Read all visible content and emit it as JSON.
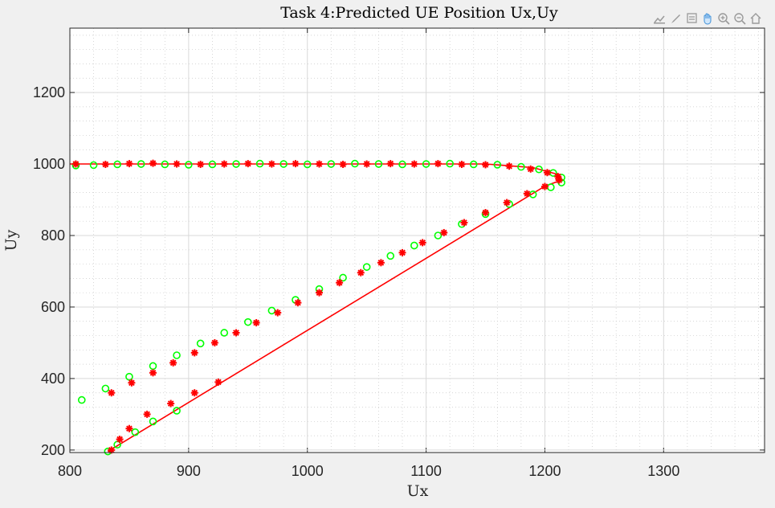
{
  "chart_data": {
    "type": "scatter",
    "title": "Task 4:Predicted UE Position Ux,Uy",
    "xlabel": "Ux",
    "ylabel": "Uy",
    "xlim": [
      800,
      1385
    ],
    "ylim": [
      193,
      1380
    ],
    "xticks": [
      800,
      900,
      1000,
      1100,
      1200,
      1300
    ],
    "yticks": [
      200,
      400,
      600,
      800,
      1000,
      1200
    ],
    "grid": true,
    "minor_grid": true,
    "series": [
      {
        "marker": "circle",
        "color": "#00ff00",
        "points": [
          [
            805,
            996
          ],
          [
            820,
            997
          ],
          [
            840,
            999
          ],
          [
            860,
            1000
          ],
          [
            880,
            999
          ],
          [
            900,
            998
          ],
          [
            920,
            999
          ],
          [
            940,
            1000
          ],
          [
            960,
            1001
          ],
          [
            980,
            1000
          ],
          [
            1000,
            999
          ],
          [
            1020,
            1000
          ],
          [
            1040,
            1001
          ],
          [
            1060,
            1000
          ],
          [
            1080,
            999
          ],
          [
            1100,
            1000
          ],
          [
            1120,
            1001
          ],
          [
            1140,
            999
          ],
          [
            1160,
            998
          ],
          [
            1180,
            992
          ],
          [
            1195,
            985
          ],
          [
            1207,
            975
          ],
          [
            1214,
            962
          ],
          [
            1214,
            948
          ],
          [
            1205,
            935
          ],
          [
            1190,
            915
          ],
          [
            1170,
            888
          ],
          [
            1150,
            860
          ],
          [
            1130,
            832
          ],
          [
            1110,
            800
          ],
          [
            1090,
            772
          ],
          [
            1070,
            743
          ],
          [
            1050,
            712
          ],
          [
            1030,
            682
          ],
          [
            1010,
            650
          ],
          [
            990,
            620
          ],
          [
            970,
            590
          ],
          [
            950,
            558
          ],
          [
            930,
            528
          ],
          [
            910,
            498
          ],
          [
            890,
            465
          ],
          [
            870,
            435
          ],
          [
            850,
            405
          ],
          [
            830,
            372
          ],
          [
            810,
            340
          ],
          [
            890,
            310
          ],
          [
            870,
            280
          ],
          [
            855,
            250
          ],
          [
            840,
            215
          ],
          [
            832,
            196
          ]
        ]
      },
      {
        "marker": "asterisk",
        "color": "#ff0000",
        "points": [
          [
            805,
            1000
          ],
          [
            830,
            999
          ],
          [
            850,
            1001
          ],
          [
            870,
            1002
          ],
          [
            890,
            1000
          ],
          [
            910,
            999
          ],
          [
            930,
            1000
          ],
          [
            950,
            1001
          ],
          [
            970,
            1000
          ],
          [
            990,
            1001
          ],
          [
            1010,
            1000
          ],
          [
            1030,
            999
          ],
          [
            1050,
            1000
          ],
          [
            1070,
            1001
          ],
          [
            1090,
            1000
          ],
          [
            1110,
            1001
          ],
          [
            1130,
            999
          ],
          [
            1150,
            998
          ],
          [
            1170,
            994
          ],
          [
            1188,
            986
          ],
          [
            1202,
            976
          ],
          [
            1211,
            965
          ],
          [
            1212,
            955
          ],
          [
            1200,
            937
          ],
          [
            1185,
            917
          ],
          [
            1168,
            892
          ],
          [
            1150,
            864
          ],
          [
            1132,
            836
          ],
          [
            1115,
            808
          ],
          [
            1097,
            780
          ],
          [
            1080,
            752
          ],
          [
            1062,
            724
          ],
          [
            1045,
            696
          ],
          [
            1027,
            668
          ],
          [
            1010,
            640
          ],
          [
            992,
            612
          ],
          [
            975,
            584
          ],
          [
            957,
            556
          ],
          [
            940,
            528
          ],
          [
            922,
            500
          ],
          [
            905,
            472
          ],
          [
            887,
            444
          ],
          [
            870,
            416
          ],
          [
            852,
            388
          ],
          [
            835,
            360
          ],
          [
            925,
            390
          ],
          [
            905,
            360
          ],
          [
            885,
            330
          ],
          [
            865,
            300
          ],
          [
            850,
            260
          ],
          [
            842,
            230
          ],
          [
            835,
            200
          ]
        ]
      }
    ],
    "line": {
      "color": "#ff0000",
      "points": [
        [
          800,
          1000
        ],
        [
          1150,
          1000
        ],
        [
          1190,
          990
        ],
        [
          1212,
          970
        ],
        [
          1214,
          955
        ],
        [
          1200,
          938
        ],
        [
          832,
          196
        ]
      ]
    }
  },
  "toolbar": {
    "icons": [
      "export-icon",
      "brush-icon",
      "datatip-icon",
      "pan-icon",
      "zoom-in-icon",
      "zoom-out-icon",
      "home-icon"
    ]
  }
}
